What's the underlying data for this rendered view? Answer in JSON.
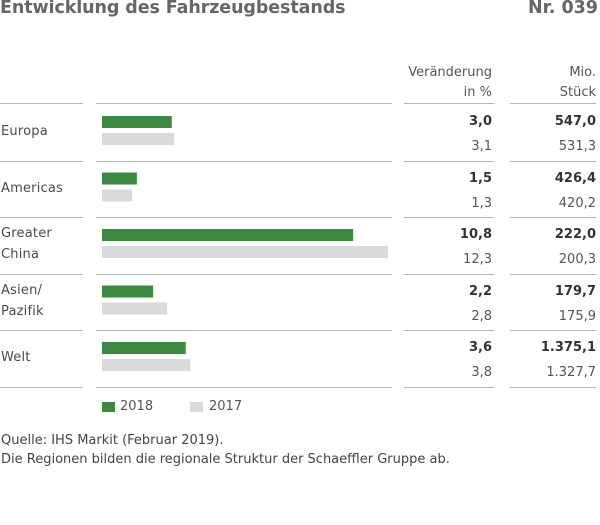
{
  "title": "Entwicklung des Fahrzeugbestands",
  "number": "Nr. 039",
  "columns": {
    "change_line1": "Veränderung",
    "change_line2": "in %",
    "units_line1": "Mio.",
    "units_line2": "Stück"
  },
  "colors": {
    "series_2018": "#3c8a3f",
    "series_2017": "#d9dadc",
    "rule": "#b5b5b5"
  },
  "chart_data": {
    "type": "bar",
    "orientation": "horizontal",
    "categories": [
      {
        "line1": "Europa",
        "line2": ""
      },
      {
        "line1": "Americas",
        "line2": ""
      },
      {
        "line1": "Greater",
        "line2": "China"
      },
      {
        "line1": "Asien/",
        "line2": "Pazifik"
      },
      {
        "line1": "Welt",
        "line2": ""
      }
    ],
    "series": [
      {
        "name": "2018",
        "values": [
          3.0,
          1.5,
          10.8,
          2.2,
          3.6
        ],
        "labels_change": [
          "3,0",
          "1,5",
          "10,8",
          "2,2",
          "3,6"
        ],
        "labels_units": [
          "547,0",
          "426,4",
          "222,0",
          "179,7",
          "1.375,1"
        ]
      },
      {
        "name": "2017",
        "values": [
          3.1,
          1.3,
          12.3,
          2.8,
          3.8
        ],
        "labels_change": [
          "3,1",
          "1,3",
          "12,3",
          "2,8",
          "3,8"
        ],
        "labels_units": [
          "531,3",
          "420,2",
          "200,3",
          "175,9",
          "1.327,7"
        ]
      }
    ],
    "xlim": [
      0,
      12.5
    ],
    "grid": false,
    "legend": "bottom-left"
  },
  "notes": {
    "line1": "Quelle: IHS Markit (Februar 2019).",
    "line2": "Die Regionen bilden die regionale Struktur der Schaeffler Gruppe ab."
  }
}
